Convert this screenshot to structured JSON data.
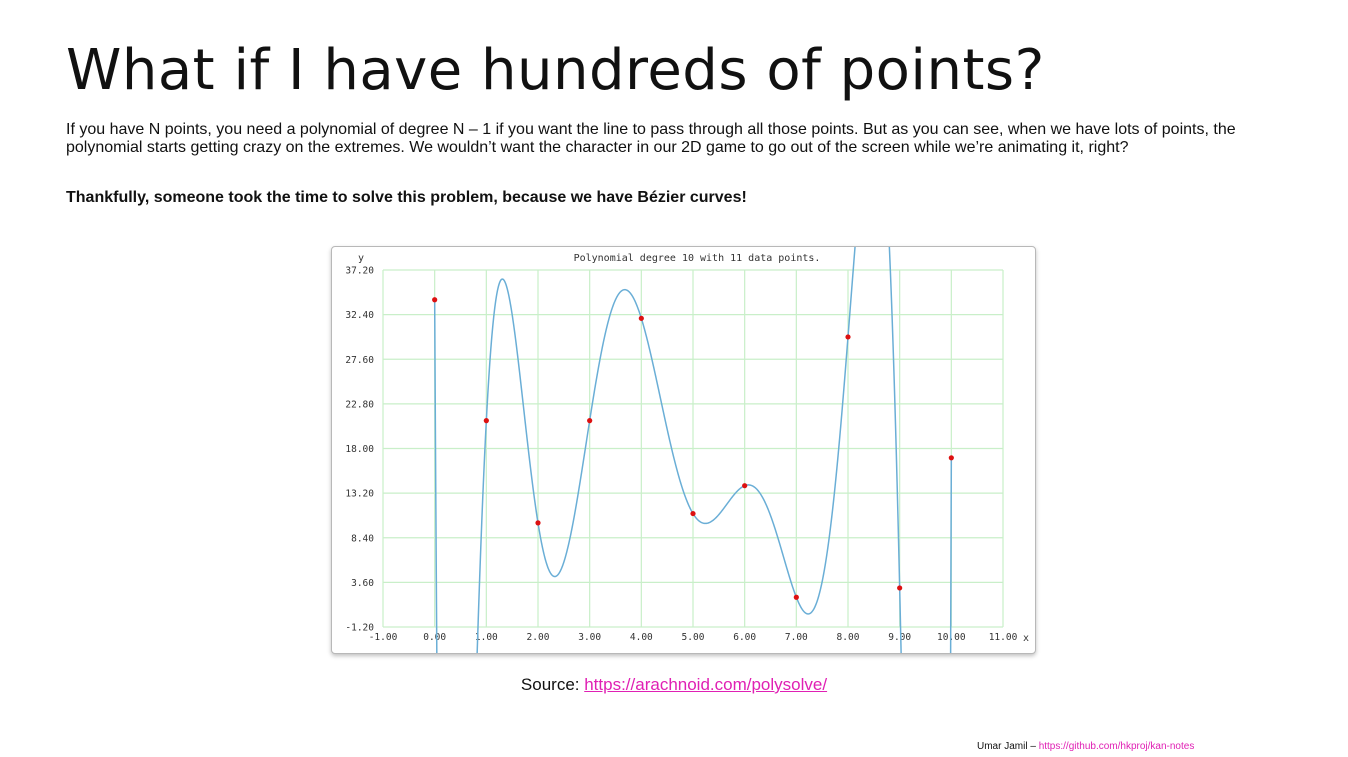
{
  "slide": {
    "title": "What if I have hundreds of points?",
    "paragraph": "If you have N points, you need a polynomial of degree N – 1 if you want the line to pass through all those points. But as you can see, when we have lots of points, the polynomial starts getting crazy on the extremes. We wouldn’t want the character in our 2D game to go out of the screen while we’re animating it, right?",
    "bold_line": "Thankfully, someone took the time to solve this problem, because we have Bézier curves!",
    "source_label": "Source: ",
    "source_link": "https://arachnoid.com/polysolve/",
    "footer_author": "Umar Jamil – ",
    "footer_link": "https://github.com/hkproj/kan-notes"
  },
  "chart_data": {
    "type": "scatter",
    "title": "Polynomial degree 10 with 11 data points.",
    "xlabel": "x",
    "ylabel": "y",
    "xlim": [
      -1.0,
      11.0
    ],
    "ylim": [
      -1.2,
      37.2
    ],
    "x_ticks": [
      "-1.00",
      "0.00",
      "1.00",
      "2.00",
      "3.00",
      "4.00",
      "5.00",
      "6.00",
      "7.00",
      "8.00",
      "9.00",
      "10.00",
      "11.00"
    ],
    "y_ticks": [
      "37.20",
      "32.40",
      "27.60",
      "22.80",
      "18.00",
      "13.20",
      "8.40",
      "3.60",
      "-1.20"
    ],
    "grid": true,
    "colors": {
      "points": "#dd1111",
      "curve": "#6aaed6",
      "grid": "#c9efc9"
    },
    "series": [
      {
        "type": "points",
        "x": [
          0,
          1,
          2,
          3,
          4,
          5,
          6,
          7,
          8,
          9,
          10
        ],
        "y": [
          34,
          21,
          10,
          21,
          32,
          11,
          14,
          2,
          30,
          3,
          17
        ]
      }
    ]
  }
}
